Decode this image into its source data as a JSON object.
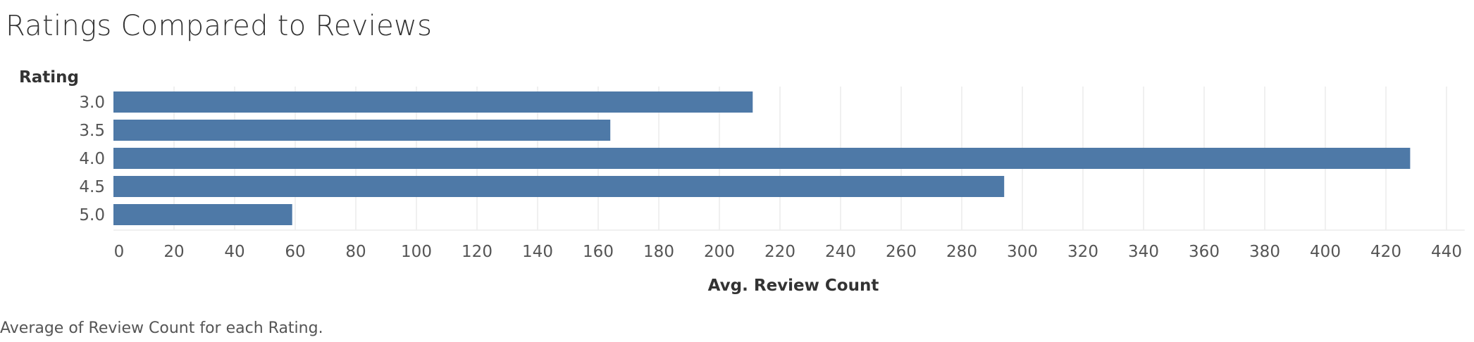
{
  "title": "Ratings Compared to Reviews",
  "caption": "Average of Review Count for each Rating.",
  "bar_color": "#4e79a7",
  "grid_color": "#ececec",
  "chart_data": {
    "type": "bar",
    "orientation": "horizontal",
    "title": "Ratings Compared to Reviews",
    "xlabel": "Avg. Review Count",
    "ylabel": "Rating",
    "categories": [
      "3.0",
      "3.5",
      "4.0",
      "4.5",
      "5.0"
    ],
    "values": [
      211,
      164,
      428,
      294,
      59
    ],
    "xlim": [
      0,
      446
    ],
    "xticks": [
      0,
      20,
      40,
      60,
      80,
      100,
      120,
      140,
      160,
      180,
      200,
      220,
      240,
      260,
      280,
      300,
      320,
      340,
      360,
      380,
      400,
      420,
      440
    ],
    "grid": true,
    "legend": "none"
  }
}
